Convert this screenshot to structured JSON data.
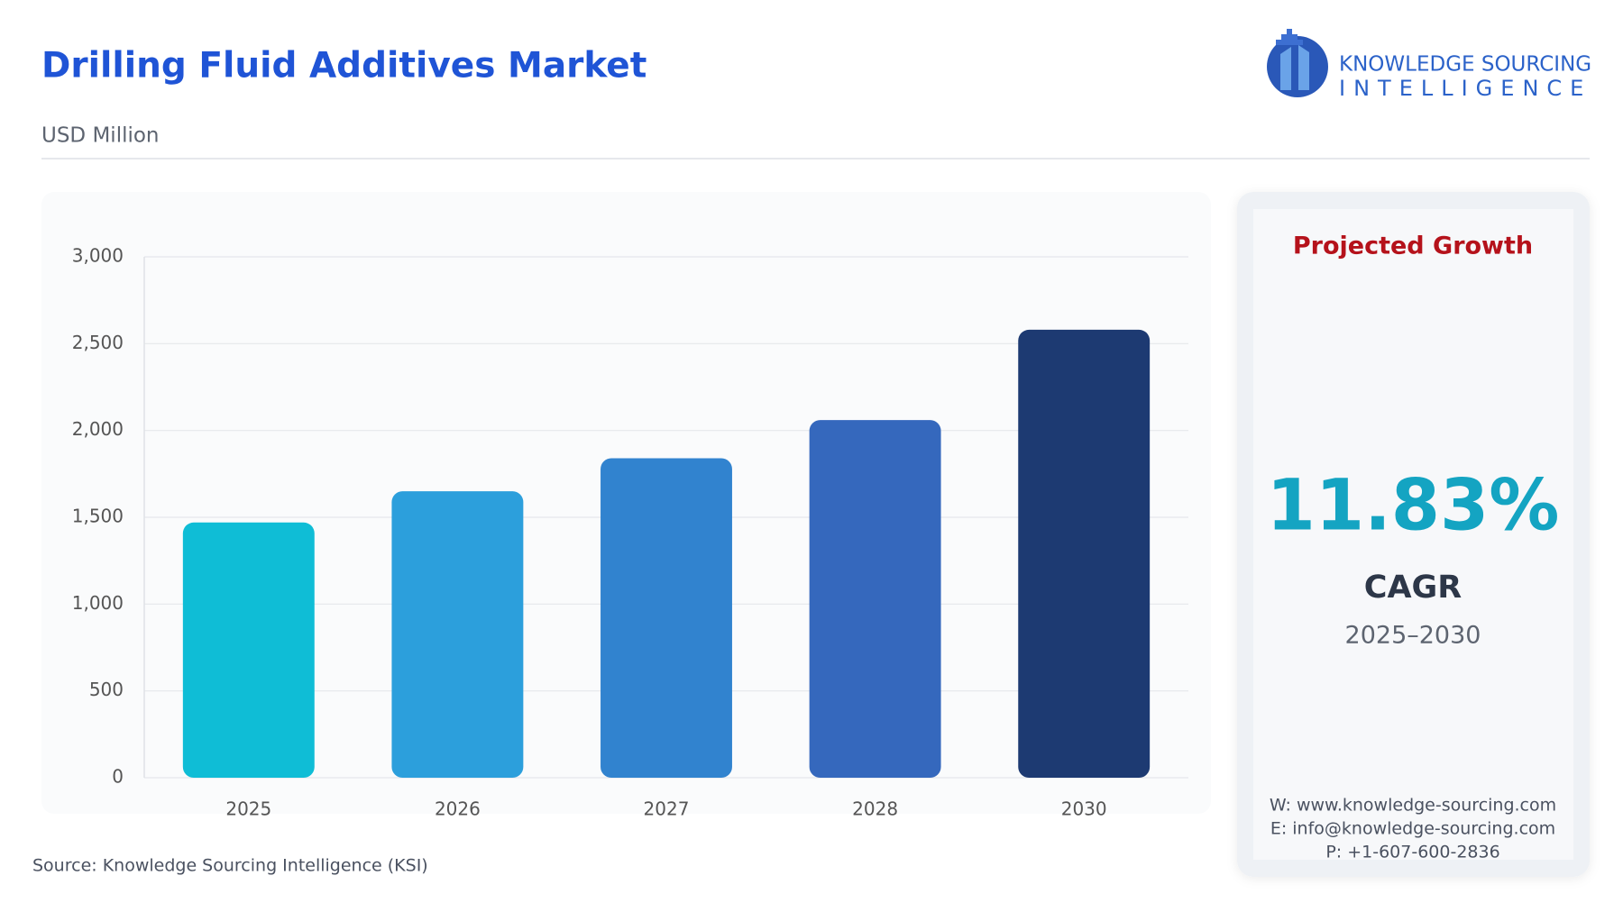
{
  "header": {
    "title": "Drilling Fluid Additives Market",
    "subtitle": "USD Million",
    "logo": {
      "line1": "KNOWLEDGE SOURCING",
      "line2": "INTELLIGENCE"
    }
  },
  "chart_data": {
    "type": "bar",
    "categories": [
      "2025",
      "2026",
      "2027",
      "2028",
      "2030"
    ],
    "values": [
      1470,
      1650,
      1840,
      2060,
      2580
    ],
    "colors": [
      "#0fbdd6",
      "#2c9fdc",
      "#3183cf",
      "#3568bd",
      "#1d3a72"
    ],
    "ylim": [
      0,
      3000
    ],
    "yticks": [
      0,
      500,
      {
        "value": 1000,
        "label": "1,000"
      },
      {
        "value": 1500,
        "label": "1,500"
      },
      {
        "value": 2000,
        "label": "2,000"
      },
      {
        "value": 2500,
        "label": "2,500"
      },
      {
        "value": 3000,
        "label": "3,000"
      }
    ],
    "grid": true
  },
  "panel": {
    "heading": "Projected Growth",
    "cagr_value": "11.83%",
    "cagr_label": "CAGR",
    "period": "2025–2030",
    "website": "W: www.knowledge-sourcing.com",
    "email": "E: info@knowledge-sourcing.com",
    "phone": "P: +1-607-600-2836"
  },
  "source": "Source: Knowledge Sourcing Intelligence (KSI)"
}
